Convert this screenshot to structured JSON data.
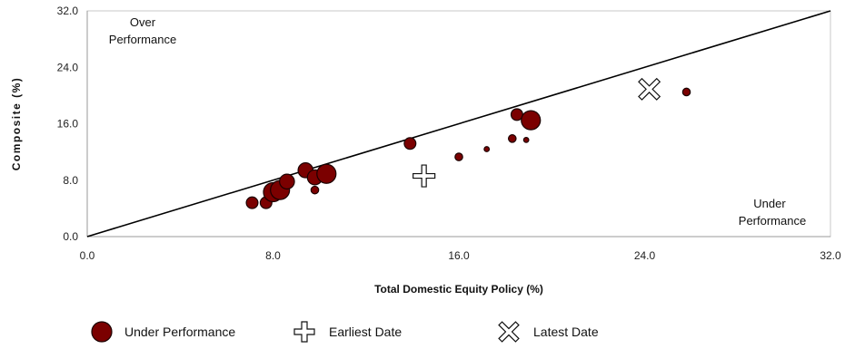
{
  "chart_data": {
    "type": "scatter",
    "xlabel": "Total Domestic Equity Policy (%)",
    "ylabel": "Composite (%)",
    "xlim": [
      0,
      32
    ],
    "ylim": [
      0,
      32
    ],
    "x_ticks": [
      "0.0",
      "8.0",
      "16.0",
      "24.0",
      "32.0"
    ],
    "y_ticks": [
      "0.0",
      "8.0",
      "16.0",
      "24.0",
      "32.0"
    ],
    "x_tick_values": [
      0,
      8,
      16,
      24,
      32
    ],
    "y_tick_values": [
      0,
      8,
      16,
      24,
      32
    ],
    "diagonal": [
      [
        0,
        0
      ],
      [
        32,
        32
      ]
    ],
    "region_labels": {
      "over": [
        "Over",
        "Performance"
      ],
      "under": [
        "Under",
        "Performance"
      ]
    },
    "series": [
      {
        "name": "Under Performance",
        "marker": "circle",
        "color": "#7b0000",
        "points": [
          {
            "x": 7.1,
            "y": 4.8,
            "size": 2
          },
          {
            "x": 7.7,
            "y": 4.8,
            "size": 2
          },
          {
            "x": 8.0,
            "y": 6.3,
            "size": 4
          },
          {
            "x": 8.3,
            "y": 6.6,
            "size": 4
          },
          {
            "x": 8.6,
            "y": 7.8,
            "size": 3
          },
          {
            "x": 9.4,
            "y": 9.4,
            "size": 3
          },
          {
            "x": 9.8,
            "y": 6.6,
            "size": 1
          },
          {
            "x": 9.8,
            "y": 8.4,
            "size": 3
          },
          {
            "x": 10.3,
            "y": 8.9,
            "size": 4
          },
          {
            "x": 13.9,
            "y": 13.2,
            "size": 2
          },
          {
            "x": 16.0,
            "y": 11.3,
            "size": 1
          },
          {
            "x": 17.2,
            "y": 12.4,
            "size": 0
          },
          {
            "x": 18.3,
            "y": 13.9,
            "size": 1
          },
          {
            "x": 18.5,
            "y": 17.3,
            "size": 2
          },
          {
            "x": 18.9,
            "y": 13.7,
            "size": 0
          },
          {
            "x": 19.1,
            "y": 16.5,
            "size": 4
          },
          {
            "x": 25.8,
            "y": 20.5,
            "size": 1
          }
        ]
      },
      {
        "name": "Earliest Date",
        "marker": "cross",
        "points": [
          {
            "x": 14.5,
            "y": 8.6
          }
        ]
      },
      {
        "name": "Latest Date",
        "marker": "x",
        "points": [
          {
            "x": 24.2,
            "y": 20.9
          }
        ]
      }
    ],
    "legend": [
      "Under Performance",
      "Earliest Date",
      "Latest Date"
    ],
    "legend_position": "bottom"
  }
}
